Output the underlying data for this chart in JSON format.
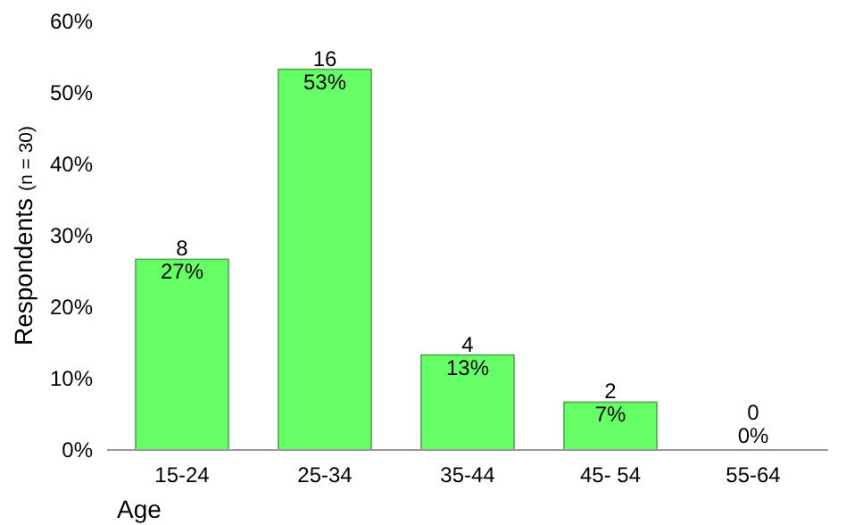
{
  "chart_data": {
    "type": "bar",
    "xlabel": "Age",
    "ylabel": "Respondents$_{(n = 30)}$",
    "categories": [
      "15-24",
      "25-34",
      "35-44",
      "45- 54",
      "55-64"
    ],
    "values": [
      26.7,
      53.3,
      13.3,
      6.7,
      0
    ],
    "value_labels": [
      "8\n27%",
      "16\n53%",
      "4\n13%",
      "2\n7%",
      "0\n0%"
    ],
    "color": "#66ff66",
    "ylim": [
      0,
      60
    ],
    "yticks": [
      {
        "value": 0,
        "label": "0%"
      },
      {
        "value": 10,
        "label": "10%"
      },
      {
        "value": 20,
        "label": "20%"
      },
      {
        "value": 30,
        "label": "30%"
      },
      {
        "value": 40,
        "label": "40%"
      },
      {
        "value": 50,
        "label": "50%"
      },
      {
        "value": 60,
        "label": "60%"
      }
    ],
    "grid": false
  }
}
